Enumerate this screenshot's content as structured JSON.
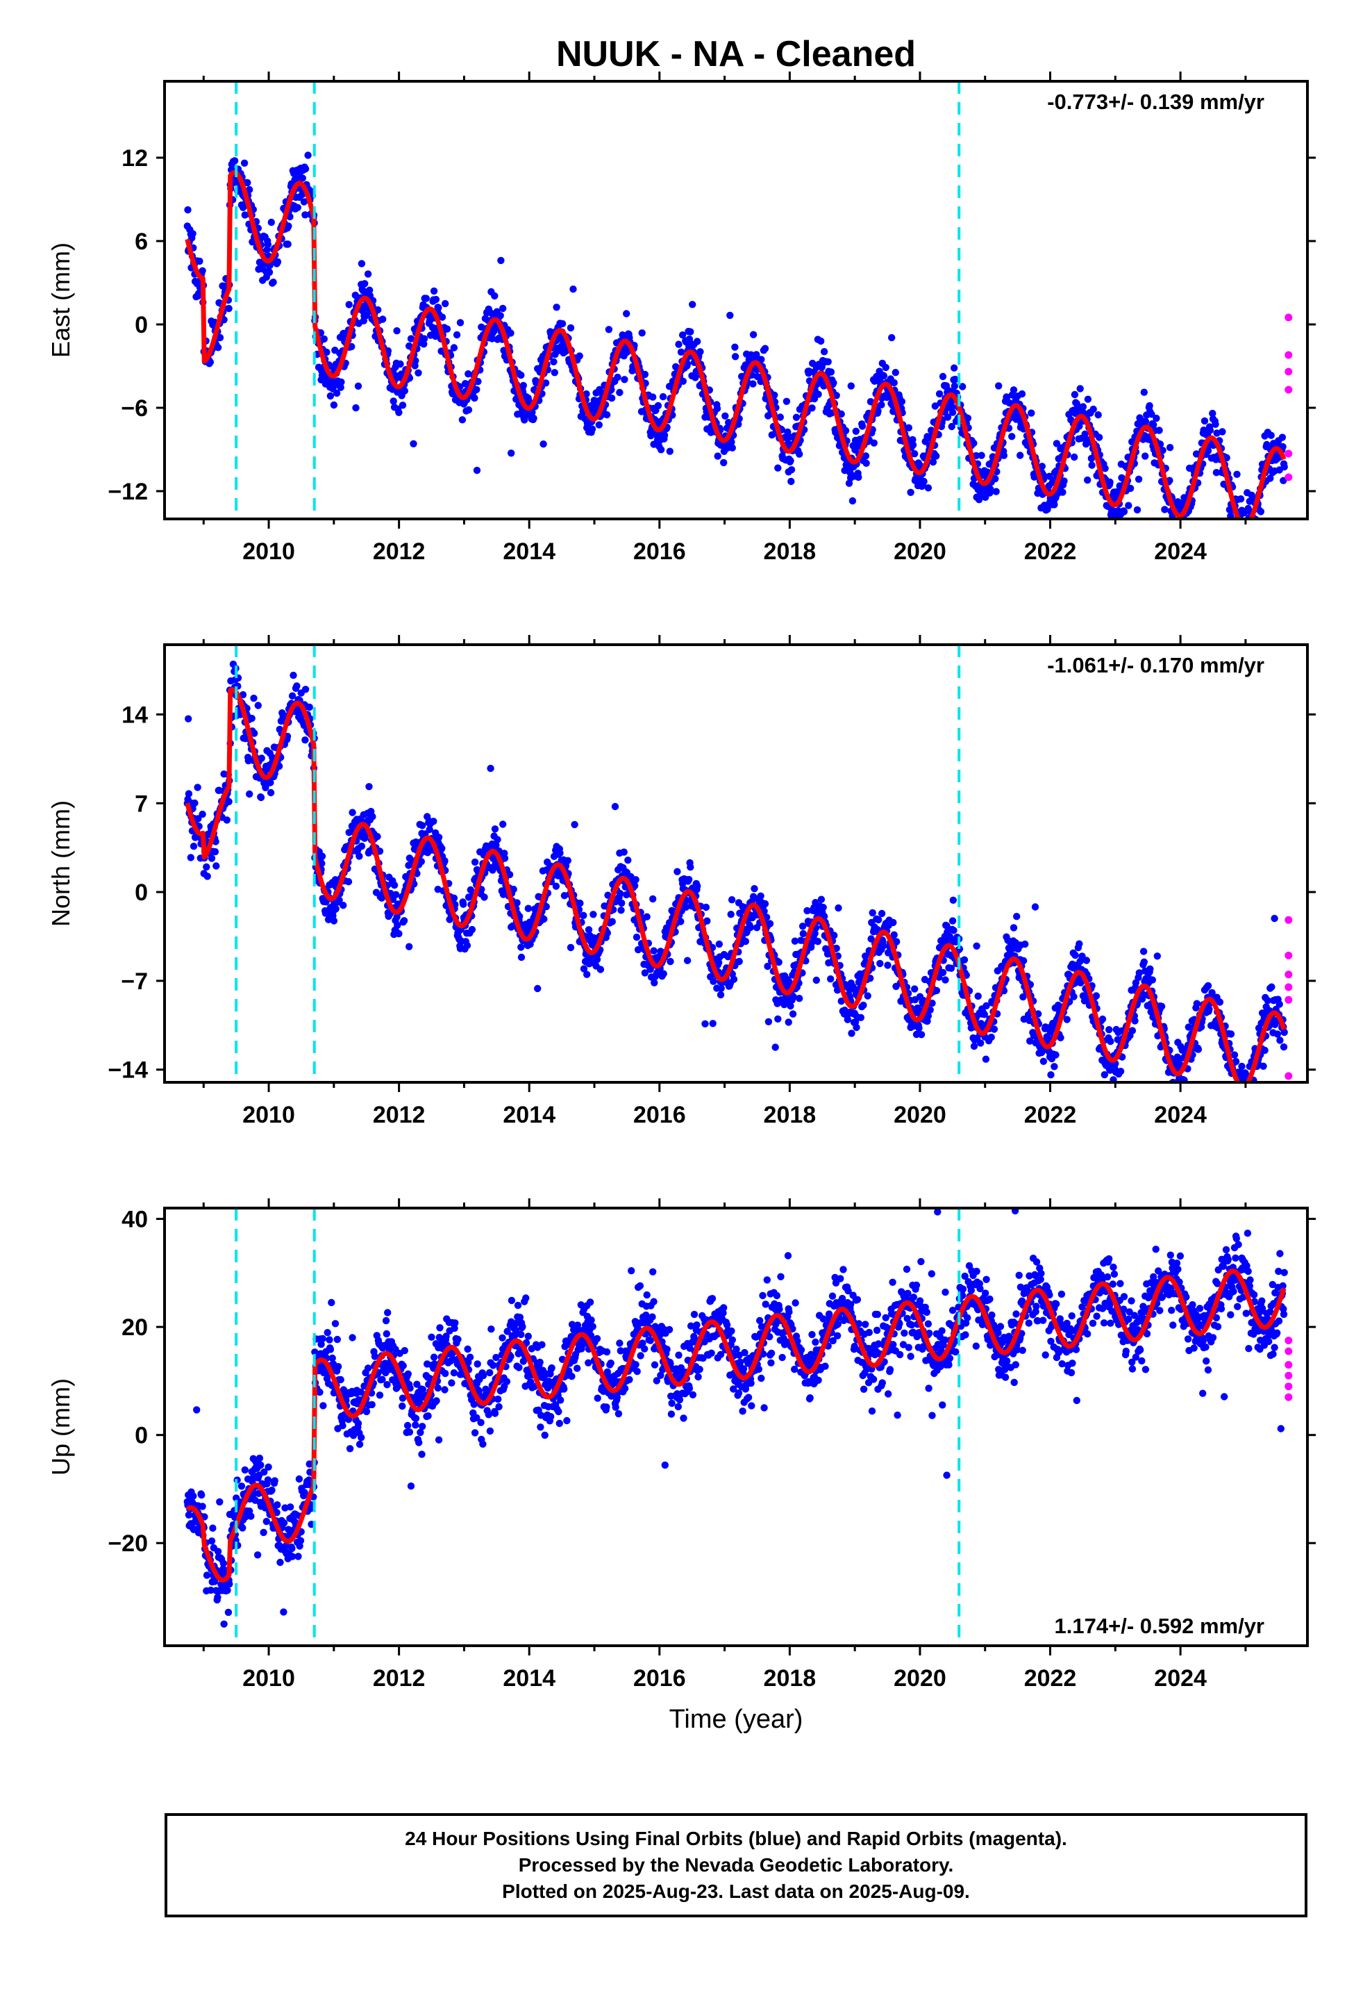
{
  "chart_data": [
    {
      "type": "scatter",
      "title": "NUUK  - NA - Cleaned",
      "ylabel": "East (mm)",
      "xlabel": "",
      "xlim": [
        2008.4,
        2025.95
      ],
      "ylim": [
        -14,
        17.5
      ],
      "yticks": [
        -12,
        -6,
        0,
        6,
        12
      ],
      "xticks": [
        2010,
        2012,
        2014,
        2016,
        2018,
        2020,
        2022,
        2024
      ],
      "rate_label": "-0.773+/- 0.139 mm/yr",
      "model": {
        "start": 2008.75,
        "end": 2025.6,
        "offset": 6.5,
        "rate": -0.773,
        "amplitude": 3.0,
        "phase_peak": 0.48,
        "steps": [
          {
            "x": 2009.0,
            "dy": -6.0
          },
          {
            "x": 2009.4,
            "dy": 8.0
          },
          {
            "x": 2010.7,
            "dy": -7.5
          }
        ]
      },
      "scatter_noise": 1.6,
      "rapid_points": [
        0.5,
        -2.2,
        -3.4,
        -4.7,
        -9.3,
        -11.0
      ],
      "breaks": [
        2009.5,
        2010.7,
        2020.6
      ],
      "grid": false
    },
    {
      "type": "scatter",
      "title": "",
      "ylabel": "North (mm)",
      "xlabel": "",
      "xlim": [
        2008.4,
        2025.95
      ],
      "ylim": [
        -15,
        19.5
      ],
      "yticks": [
        -14,
        -7,
        0,
        7,
        14
      ],
      "xticks": [
        2010,
        2012,
        2014,
        2016,
        2018,
        2020,
        2022,
        2024
      ],
      "rate_label": "-1.061+/- 0.170 mm/yr",
      "model": {
        "start": 2008.75,
        "end": 2025.6,
        "offset": 8.0,
        "rate": -1.061,
        "amplitude": 3.2,
        "phase_peak": 0.45,
        "steps": [
          {
            "x": 2009.0,
            "dy": -2.0
          },
          {
            "x": 2009.4,
            "dy": 7.5
          },
          {
            "x": 2010.7,
            "dy": -8.5
          }
        ]
      },
      "scatter_noise": 1.8,
      "rapid_points": [
        -2.2,
        -5.0,
        -6.5,
        -7.5,
        -8.5,
        -14.5
      ],
      "breaks": [
        2009.5,
        2010.7,
        2020.6
      ],
      "grid": false
    },
    {
      "type": "scatter",
      "title": "",
      "ylabel": "Up (mm)",
      "xlabel": "Time (year)",
      "xlim": [
        2008.4,
        2025.95
      ],
      "ylim": [
        -39,
        42
      ],
      "yticks": [
        -20,
        0,
        20,
        40
      ],
      "xticks": [
        2010,
        2012,
        2014,
        2016,
        2018,
        2020,
        2022,
        2024
      ],
      "rate_label": "1.174+/- 0.592 mm/yr",
      "model": {
        "start": 2008.75,
        "end": 2025.6,
        "offset": -19.0,
        "rate": 1.174,
        "amplitude": 5.5,
        "phase_peak": 0.8,
        "steps": [
          {
            "x": 2009.0,
            "dy": -3.0
          },
          {
            "x": 2009.4,
            "dy": 6.0
          },
          {
            "x": 2010.7,
            "dy": 22.0
          }
        ]
      },
      "scatter_noise": 5.5,
      "rapid_points": [
        7.0,
        9.0,
        11.0,
        13.0,
        15.5,
        17.5
      ],
      "breaks": [
        2009.5,
        2010.7,
        2020.6
      ],
      "grid": false
    }
  ],
  "colors": {
    "final_orbits": "#0000ff",
    "rapid_orbits": "#ff00ff",
    "model_fit": "#ff0000",
    "breaks": "#00e5ee",
    "axes": "#000000"
  },
  "footer": {
    "line1": "24 Hour Positions Using Final Orbits (blue) and Rapid Orbits (magenta).",
    "line2": "Processed by the Nevada Geodetic Laboratory.",
    "line3": "Plotted on 2025-Aug-23. Last data on 2025-Aug-09."
  }
}
